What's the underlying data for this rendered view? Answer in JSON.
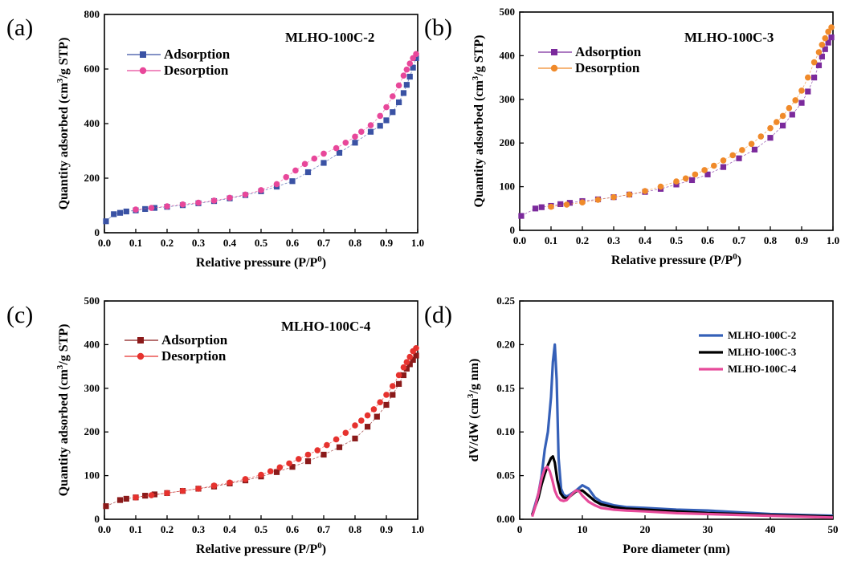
{
  "chart_data": [
    {
      "type": "scatter",
      "panel_label": "(a)",
      "title": "MLHO-100C-2",
      "xlabel": "Relative pressure (P/P",
      "xlabel_sup": "0",
      "xlabel_tail": ")",
      "ylabel": "Quantity adsorbed (cm",
      "ylabel_sup": "3",
      "ylabel_tail": "/g STP)",
      "xlim": [
        0,
        1
      ],
      "ylim": [
        0,
        800
      ],
      "xticks": [
        "0.0",
        "0.1",
        "0.2",
        "0.3",
        "0.4",
        "0.5",
        "0.6",
        "0.7",
        "0.8",
        "0.9",
        "1.0"
      ],
      "yticks": [
        "0",
        "200",
        "400",
        "600",
        "800"
      ],
      "legend_position": "top-left",
      "series": [
        {
          "name": "Adsorption",
          "marker": "square",
          "color": "#3a52a4",
          "x": [
            0.005,
            0.03,
            0.05,
            0.07,
            0.1,
            0.13,
            0.16,
            0.2,
            0.25,
            0.3,
            0.35,
            0.4,
            0.45,
            0.5,
            0.55,
            0.6,
            0.65,
            0.7,
            0.75,
            0.8,
            0.85,
            0.88,
            0.9,
            0.92,
            0.94,
            0.955,
            0.965,
            0.975,
            0.985,
            0.995
          ],
          "y": [
            42,
            68,
            73,
            78,
            82,
            87,
            91,
            95,
            101,
            108,
            116,
            126,
            138,
            152,
            169,
            189,
            222,
            256,
            293,
            330,
            370,
            392,
            412,
            442,
            478,
            512,
            542,
            572,
            605,
            640
          ]
        },
        {
          "name": "Desorption",
          "marker": "circle",
          "color": "#e8479a",
          "x": [
            0.995,
            0.985,
            0.975,
            0.965,
            0.955,
            0.94,
            0.92,
            0.9,
            0.88,
            0.85,
            0.82,
            0.8,
            0.77,
            0.74,
            0.7,
            0.67,
            0.64,
            0.61,
            0.58,
            0.55,
            0.5,
            0.45,
            0.4,
            0.35,
            0.3,
            0.25,
            0.2,
            0.15,
            0.1
          ],
          "y": [
            655,
            640,
            620,
            598,
            576,
            540,
            500,
            460,
            428,
            394,
            370,
            352,
            330,
            310,
            290,
            272,
            252,
            228,
            204,
            178,
            156,
            140,
            128,
            118,
            110,
            104,
            97,
            91,
            85
          ]
        }
      ]
    },
    {
      "type": "scatter",
      "panel_label": "(b)",
      "title": "MLHO-100C-3",
      "xlabel": "Relative pressure (P/P",
      "xlabel_sup": "0",
      "xlabel_tail": ")",
      "ylabel": "Quantity adsorbed (cm",
      "ylabel_sup": "3",
      "ylabel_tail": "/g STP)",
      "xlim": [
        0,
        1
      ],
      "ylim": [
        0,
        500
      ],
      "xticks": [
        "0.0",
        "0.1",
        "0.2",
        "0.3",
        "0.4",
        "0.5",
        "0.6",
        "0.7",
        "0.8",
        "0.9",
        "1.0"
      ],
      "yticks": [
        "0",
        "100",
        "200",
        "300",
        "400",
        "500"
      ],
      "legend_position": "top-left",
      "series": [
        {
          "name": "Adsorption",
          "marker": "square",
          "color": "#7b2a9c",
          "x": [
            0.005,
            0.05,
            0.07,
            0.1,
            0.13,
            0.16,
            0.2,
            0.25,
            0.3,
            0.35,
            0.4,
            0.45,
            0.5,
            0.55,
            0.6,
            0.65,
            0.7,
            0.75,
            0.8,
            0.84,
            0.87,
            0.9,
            0.92,
            0.94,
            0.955,
            0.965,
            0.975,
            0.985,
            0.995
          ],
          "y": [
            33,
            50,
            53,
            56,
            60,
            63,
            67,
            71,
            76,
            82,
            88,
            95,
            105,
            115,
            128,
            145,
            165,
            185,
            212,
            240,
            265,
            292,
            318,
            350,
            378,
            398,
            415,
            430,
            442
          ]
        },
        {
          "name": "Desorption",
          "marker": "circle",
          "color": "#f08a2a",
          "x": [
            0.995,
            0.985,
            0.975,
            0.965,
            0.955,
            0.94,
            0.92,
            0.9,
            0.88,
            0.86,
            0.84,
            0.82,
            0.8,
            0.77,
            0.74,
            0.71,
            0.68,
            0.65,
            0.62,
            0.59,
            0.56,
            0.53,
            0.5,
            0.45,
            0.4,
            0.35,
            0.3,
            0.25,
            0.2,
            0.15,
            0.1
          ],
          "y": [
            465,
            455,
            440,
            425,
            408,
            385,
            350,
            320,
            298,
            280,
            262,
            248,
            234,
            215,
            198,
            184,
            172,
            160,
            148,
            138,
            128,
            119,
            112,
            100,
            90,
            82,
            76,
            70,
            64,
            59,
            54
          ]
        }
      ]
    },
    {
      "type": "scatter",
      "panel_label": "(c)",
      "title": "MLHO-100C-4",
      "xlabel": "Relative pressure (P/P",
      "xlabel_sup": "0",
      "xlabel_tail": ")",
      "ylabel": "Quantity adsorbed (cm",
      "ylabel_sup": "3",
      "ylabel_tail": "/g STP)",
      "xlim": [
        0,
        1
      ],
      "ylim": [
        0,
        500
      ],
      "xticks": [
        "0.0",
        "0.1",
        "0.2",
        "0.3",
        "0.4",
        "0.5",
        "0.6",
        "0.7",
        "0.8",
        "0.9",
        "1.0"
      ],
      "yticks": [
        "0",
        "100",
        "200",
        "300",
        "400",
        "500"
      ],
      "legend_position": "top-left",
      "series": [
        {
          "name": "Adsorption",
          "marker": "square",
          "color": "#8b1a1a",
          "x": [
            0.005,
            0.05,
            0.07,
            0.1,
            0.13,
            0.16,
            0.2,
            0.25,
            0.3,
            0.35,
            0.4,
            0.45,
            0.5,
            0.55,
            0.6,
            0.65,
            0.7,
            0.75,
            0.8,
            0.84,
            0.87,
            0.9,
            0.92,
            0.94,
            0.955,
            0.965,
            0.975,
            0.985,
            0.995
          ],
          "y": [
            30,
            44,
            47,
            50,
            54,
            57,
            60,
            65,
            70,
            75,
            82,
            89,
            98,
            108,
            120,
            133,
            148,
            165,
            185,
            212,
            235,
            262,
            285,
            310,
            330,
            345,
            355,
            365,
            375
          ]
        },
        {
          "name": "Desorption",
          "marker": "circle",
          "color": "#e6322e",
          "x": [
            0.995,
            0.985,
            0.975,
            0.965,
            0.955,
            0.94,
            0.92,
            0.9,
            0.88,
            0.86,
            0.84,
            0.82,
            0.8,
            0.77,
            0.74,
            0.71,
            0.68,
            0.65,
            0.62,
            0.59,
            0.56,
            0.53,
            0.5,
            0.45,
            0.4,
            0.35,
            0.3,
            0.25,
            0.2,
            0.15,
            0.1
          ],
          "y": [
            392,
            385,
            372,
            360,
            348,
            330,
            305,
            285,
            268,
            252,
            238,
            226,
            215,
            198,
            183,
            170,
            158,
            148,
            138,
            128,
            119,
            110,
            102,
            92,
            84,
            77,
            70,
            65,
            60,
            55,
            50
          ]
        }
      ]
    },
    {
      "type": "line",
      "panel_label": "(d)",
      "title": "",
      "xlabel": "Pore diameter (nm)",
      "ylabel": "dV/dW (cm",
      "ylabel_sup": "3",
      "ylabel_tail": "/g nm)",
      "xlim": [
        0,
        50
      ],
      "ylim": [
        0,
        0.25
      ],
      "xticks": [
        "0",
        "10",
        "20",
        "30",
        "40",
        "50"
      ],
      "yticks": [
        "0.00",
        "0.05",
        "0.10",
        "0.15",
        "0.20",
        "0.25"
      ],
      "legend_position": "top-right",
      "series": [
        {
          "name": "MLHO-100C-2",
          "color": "#3560b8",
          "x": [
            2,
            3,
            3.5,
            4,
            4.5,
            5,
            5.3,
            5.6,
            5.9,
            6.2,
            6.6,
            7,
            7.5,
            8,
            9,
            10,
            11,
            12,
            13,
            15,
            17,
            20,
            25,
            30,
            35,
            40,
            45,
            50
          ],
          "y": [
            0.005,
            0.03,
            0.05,
            0.08,
            0.1,
            0.14,
            0.18,
            0.2,
            0.16,
            0.07,
            0.035,
            0.028,
            0.026,
            0.028,
            0.033,
            0.039,
            0.035,
            0.025,
            0.02,
            0.016,
            0.014,
            0.013,
            0.011,
            0.01,
            0.008,
            0.006,
            0.005,
            0.004
          ]
        },
        {
          "name": "MLHO-100C-3",
          "color": "#000000",
          "x": [
            2,
            3,
            3.5,
            4,
            4.5,
            5,
            5.3,
            5.6,
            6,
            6.5,
            7,
            7.5,
            8,
            9,
            10,
            11,
            12,
            13,
            15,
            17,
            20,
            25,
            30,
            35,
            40,
            45,
            50
          ],
          "y": [
            0.005,
            0.025,
            0.04,
            0.052,
            0.062,
            0.07,
            0.072,
            0.065,
            0.045,
            0.03,
            0.025,
            0.024,
            0.026,
            0.032,
            0.033,
            0.027,
            0.021,
            0.017,
            0.014,
            0.012,
            0.011,
            0.009,
            0.007,
            0.006,
            0.005,
            0.004,
            0.003
          ]
        },
        {
          "name": "MLHO-100C-4",
          "color": "#e64a9a",
          "x": [
            2,
            2.5,
            3,
            3.5,
            4,
            4.4,
            4.8,
            5.2,
            5.6,
            6,
            6.5,
            7,
            7.5,
            8,
            8.5,
            9,
            9.5,
            10,
            11,
            12,
            13,
            15,
            17,
            20,
            25,
            30,
            35,
            40,
            45,
            50
          ],
          "y": [
            0.003,
            0.015,
            0.03,
            0.047,
            0.058,
            0.06,
            0.055,
            0.045,
            0.033,
            0.026,
            0.022,
            0.021,
            0.022,
            0.026,
            0.03,
            0.033,
            0.032,
            0.027,
            0.02,
            0.016,
            0.013,
            0.011,
            0.01,
            0.009,
            0.007,
            0.006,
            0.005,
            0.004,
            0.003,
            0.002
          ]
        }
      ]
    }
  ]
}
